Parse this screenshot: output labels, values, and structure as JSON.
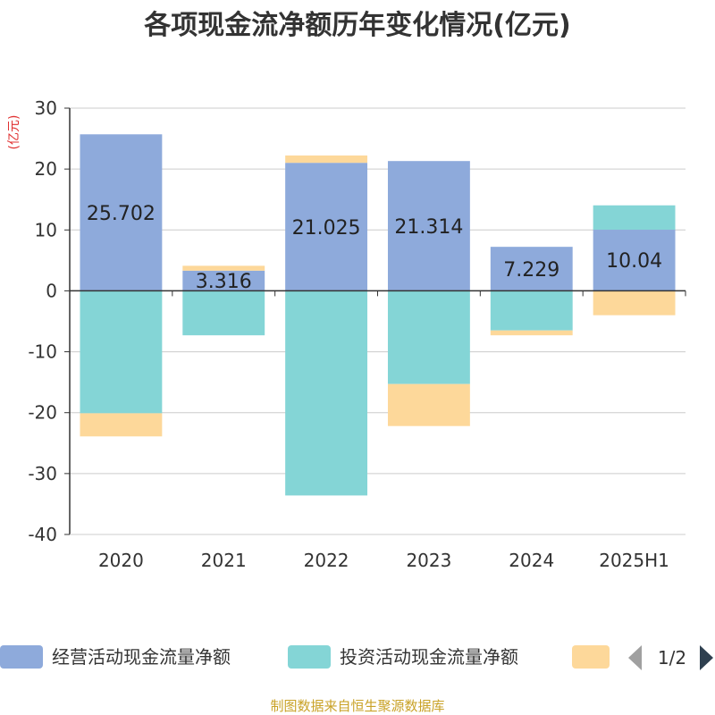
{
  "chart_data": {
    "type": "bar",
    "stacked": true,
    "title": "各项现金流净额历年变化情况(亿元)",
    "ylabel": "(亿元)",
    "categories": [
      "2020",
      "2021",
      "2022",
      "2023",
      "2024",
      "2025H1"
    ],
    "ylim": [
      -40,
      30
    ],
    "yticks": [
      30,
      20,
      10,
      0,
      -10,
      -20,
      -30,
      -40
    ],
    "grid": true,
    "series": [
      {
        "name": "经营活动现金流量净额",
        "color": "#8eaadb",
        "values": [
          25.702,
          3.316,
          21.025,
          21.314,
          7.229,
          10.04
        ]
      },
      {
        "name": "投资活动现金流量净额",
        "color": "#84d5d6",
        "values": [
          -20.1,
          -7.3,
          -33.6,
          -15.3,
          -6.5,
          4.0
        ]
      },
      {
        "name": "",
        "color": "#fdd89a",
        "values": [
          -3.8,
          0.8,
          1.2,
          -6.9,
          -0.8,
          -4.0
        ]
      }
    ],
    "data_labels": [
      "25.702",
      "3.316",
      "21.025",
      "21.314",
      "7.229",
      "10.04"
    ],
    "legend_position": "bottom"
  },
  "legend": {
    "pager": "1/2",
    "prev_icon": "triangle-left-icon",
    "next_icon": "triangle-right-icon"
  },
  "source": "制图数据来自恒生聚源数据库"
}
